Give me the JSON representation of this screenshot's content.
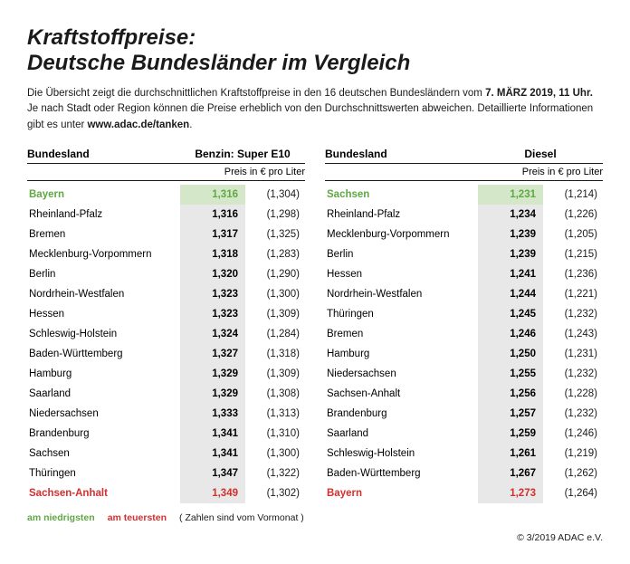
{
  "title_line1": "Kraftstoffpreise:",
  "title_line2": "Deutsche Bundesländer im Vergleich",
  "intro_a": "Die Übersicht zeigt die durchschnittlichen Kraftstoffpreise in den 16 deutschen Bundesländern vom ",
  "intro_date": "7. MÄRZ 2019, 11 Uhr.",
  "intro_b": " Je nach Stadt oder Region können die Preise erheblich von den Durchschnittswerten abweichen. Detaillierte Informationen gibt es unter ",
  "intro_url": "www.adac.de/tanken",
  "intro_c": ".",
  "col_state": "Bundesland",
  "col_benzin": "Benzin:  Super E10",
  "col_diesel": "Diesel",
  "sub": "Preis in € pro Liter",
  "legend_lo": "am niedrigsten",
  "legend_hi": "am teuersten",
  "legend_note": "( Zahlen sind vom Vormonat )",
  "copyright": "© 3/2019 ADAC e.V.",
  "benzin": [
    {
      "n": "Bayern",
      "p": "1,316",
      "v": "(1,304)"
    },
    {
      "n": "Rheinland-Pfalz",
      "p": "1,316",
      "v": "(1,298)"
    },
    {
      "n": "Bremen",
      "p": "1,317",
      "v": "(1,325)"
    },
    {
      "n": "Mecklenburg-Vorpommern",
      "p": "1,318",
      "v": "(1,283)"
    },
    {
      "n": "Berlin",
      "p": "1,320",
      "v": "(1,290)"
    },
    {
      "n": "Nordrhein-Westfalen",
      "p": "1,323",
      "v": "(1,300)"
    },
    {
      "n": "Hessen",
      "p": "1,323",
      "v": "(1,309)"
    },
    {
      "n": "Schleswig-Holstein",
      "p": "1,324",
      "v": "(1,284)"
    },
    {
      "n": "Baden-Württemberg",
      "p": "1,327",
      "v": "(1,318)"
    },
    {
      "n": "Hamburg",
      "p": "1,329",
      "v": "(1,309)"
    },
    {
      "n": "Saarland",
      "p": "1,329",
      "v": "(1,308)"
    },
    {
      "n": "Niedersachsen",
      "p": "1,333",
      "v": "(1,313)"
    },
    {
      "n": "Brandenburg",
      "p": "1,341",
      "v": "(1,310)"
    },
    {
      "n": "Sachsen",
      "p": "1,341",
      "v": "(1,300)"
    },
    {
      "n": "Thüringen",
      "p": "1,347",
      "v": "(1,322)"
    },
    {
      "n": "Sachsen-Anhalt",
      "p": "1,349",
      "v": "(1,302)"
    }
  ],
  "diesel": [
    {
      "n": "Sachsen",
      "p": "1,231",
      "v": "(1,214)"
    },
    {
      "n": "Rheinland-Pfalz",
      "p": "1,234",
      "v": "(1,226)"
    },
    {
      "n": "Mecklenburg-Vorpommern",
      "p": "1,239",
      "v": "(1,205)"
    },
    {
      "n": "Berlin",
      "p": "1,239",
      "v": "(1,215)"
    },
    {
      "n": "Hessen",
      "p": "1,241",
      "v": "(1,236)"
    },
    {
      "n": "Nordrhein-Westfalen",
      "p": "1,244",
      "v": "(1,221)"
    },
    {
      "n": "Thüringen",
      "p": "1,245",
      "v": "(1,232)"
    },
    {
      "n": "Bremen",
      "p": "1,246",
      "v": "(1,243)"
    },
    {
      "n": "Hamburg",
      "p": "1,250",
      "v": "(1,231)"
    },
    {
      "n": "Niedersachsen",
      "p": "1,255",
      "v": "(1,232)"
    },
    {
      "n": "Sachsen-Anhalt",
      "p": "1,256",
      "v": "(1,228)"
    },
    {
      "n": "Brandenburg",
      "p": "1,257",
      "v": "(1,232)"
    },
    {
      "n": "Saarland",
      "p": "1,259",
      "v": "(1,246)"
    },
    {
      "n": "Schleswig-Holstein",
      "p": "1,261",
      "v": "(1,219)"
    },
    {
      "n": "Baden-Württemberg",
      "p": "1,267",
      "v": "(1,262)"
    },
    {
      "n": "Bayern",
      "p": "1,273",
      "v": "(1,264)"
    }
  ]
}
